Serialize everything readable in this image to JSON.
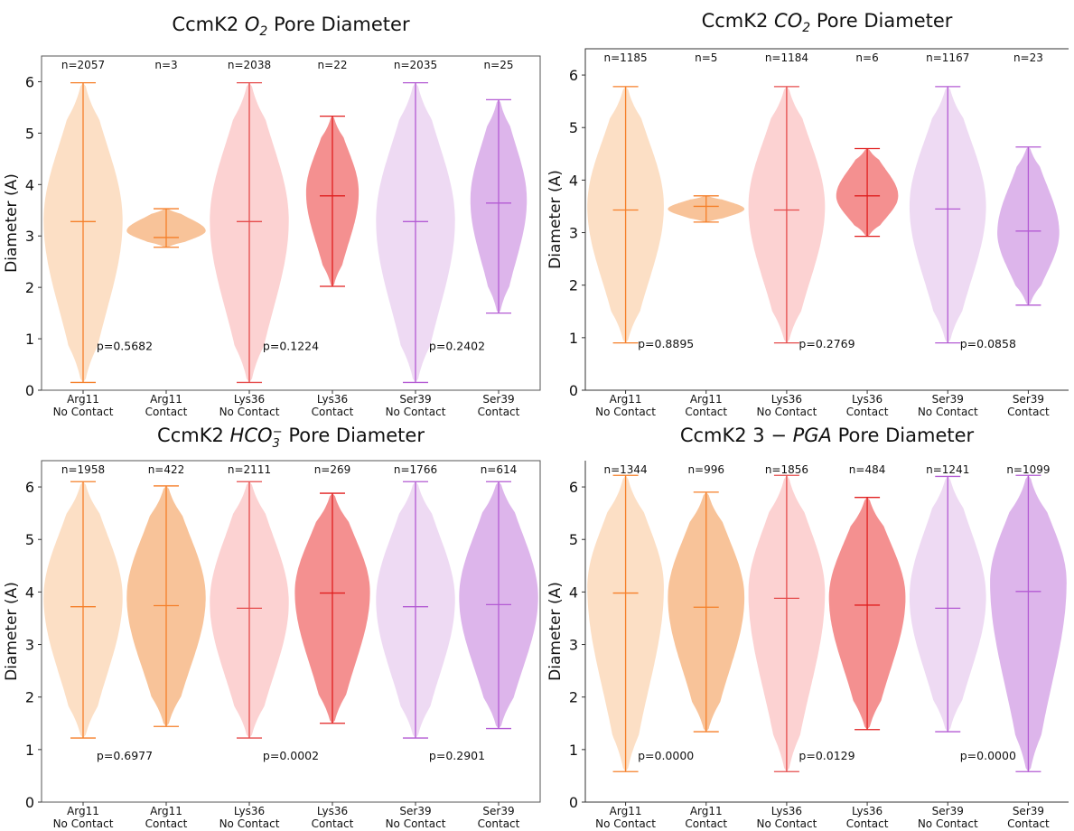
{
  "chart_data": [
    {
      "type": "violin",
      "title": "CcmK2 O₂ Pore Diameter",
      "ylabel": "Diameter (A)",
      "ylim": [
        0,
        6.5
      ],
      "yticks": [
        "0",
        "1",
        "2",
        "3",
        "4",
        "5",
        "6"
      ],
      "categories": [
        "Arg11 No Contact",
        "Arg11 Contact",
        "Lys36 No Contact",
        "Lys36 Contact",
        "Ser39 No Contact",
        "Ser39 Contact"
      ],
      "tick_lines": [
        [
          "Arg11",
          "No Contact"
        ],
        [
          "Arg11",
          "Contact"
        ],
        [
          "Lys36",
          "No Contact"
        ],
        [
          "Lys36",
          "Contact"
        ],
        [
          "Ser39",
          "No Contact"
        ],
        [
          "Ser39",
          "Contact"
        ]
      ],
      "colors": [
        "#fbd9bb",
        "#f7b887",
        "#fbcaca",
        "#f27c7c",
        "#ebd3f1",
        "#d7a8e8"
      ],
      "line_colors": [
        "#f57f29",
        "#f57f29",
        "#e54b4b",
        "#e01f1f",
        "#b35ad3",
        "#b35ad3"
      ],
      "counts": [
        "n=2057",
        "n=3",
        "n=2038",
        "n=22",
        "n=2035",
        "n=25"
      ],
      "min": [
        0.15,
        2.78,
        0.15,
        2.02,
        0.15,
        1.5
      ],
      "max": [
        5.98,
        3.53,
        5.98,
        5.33,
        5.98,
        5.65
      ],
      "median": [
        3.28,
        2.97,
        3.28,
        3.78,
        3.28,
        3.64
      ],
      "mode": [
        3.3,
        3.1,
        3.3,
        3.85,
        3.3,
        3.7
      ],
      "width": [
        0.42,
        0.42,
        0.42,
        0.28,
        0.42,
        0.3
      ],
      "pvalues": [
        "p=0.5682",
        "p=0.1224",
        "p=0.2402"
      ],
      "pvalue_y": 0.85
    },
    {
      "type": "violin",
      "title": "CcmK2 CO₂ Pore Diameter",
      "ylabel": "Diameter (A)",
      "ylim": [
        0,
        6.5
      ],
      "yticks": [
        "0",
        "1",
        "2",
        "3",
        "4",
        "5",
        "6"
      ],
      "categories": [
        "Arg11 No Contact",
        "Arg11 Contact",
        "Lys36 No Contact",
        "Lys36 Contact",
        "Ser39 No Contact",
        "Ser39 Contact"
      ],
      "tick_lines": [
        [
          "Arg11",
          "No Contact"
        ],
        [
          "Arg11",
          "Contact"
        ],
        [
          "Lys36",
          "No Contact"
        ],
        [
          "Lys36",
          "Contact"
        ],
        [
          "Ser39",
          "No Contact"
        ],
        [
          "Ser39",
          "Contact"
        ]
      ],
      "colors": [
        "#fbd9bb",
        "#f7b887",
        "#fbcaca",
        "#f27c7c",
        "#ebd3f1",
        "#d7a8e8"
      ],
      "line_colors": [
        "#f57f29",
        "#f57f29",
        "#e54b4b",
        "#e01f1f",
        "#b35ad3",
        "#b35ad3"
      ],
      "counts": [
        "n=1185",
        "n=5",
        "n=1184",
        "n=6",
        "n=1167",
        "n=23"
      ],
      "min": [
        0.9,
        3.2,
        0.9,
        2.93,
        0.9,
        1.62
      ],
      "max": [
        5.78,
        3.7,
        5.78,
        4.6,
        5.78,
        4.63
      ],
      "median": [
        3.43,
        3.5,
        3.43,
        3.7,
        3.45,
        3.03
      ],
      "mode": [
        3.5,
        3.45,
        3.5,
        3.7,
        3.5,
        3.0
      ],
      "width": [
        0.42,
        0.42,
        0.42,
        0.34,
        0.42,
        0.34
      ],
      "pvalues": [
        "p=0.8895",
        "p=0.2769",
        "p=0.0858"
      ],
      "pvalue_y": 0.88
    },
    {
      "type": "violin",
      "title": "CcmK2 HCO₃⁻ Pore Diameter",
      "ylabel": "Diameter (A)",
      "ylim": [
        0,
        6.5
      ],
      "yticks": [
        "0",
        "1",
        "2",
        "3",
        "4",
        "5",
        "6"
      ],
      "categories": [
        "Arg11 No Contact",
        "Arg11 Contact",
        "Lys36 No Contact",
        "Lys36 Contact",
        "Ser39 No Contact",
        "Ser39 Contact"
      ],
      "tick_lines": [
        [
          "Arg11",
          "No Contact"
        ],
        [
          "Arg11",
          "Contact"
        ],
        [
          "Lys36",
          "No Contact"
        ],
        [
          "Lys36",
          "Contact"
        ],
        [
          "Ser39",
          "No Contact"
        ],
        [
          "Ser39",
          "Contact"
        ]
      ],
      "colors": [
        "#fbd9bb",
        "#f7b887",
        "#fbcaca",
        "#f27c7c",
        "#ebd3f1",
        "#d7a8e8"
      ],
      "line_colors": [
        "#f57f29",
        "#f57f29",
        "#e54b4b",
        "#e01f1f",
        "#b35ad3",
        "#b35ad3"
      ],
      "counts": [
        "n=1958",
        "n=422",
        "n=2111",
        "n=269",
        "n=1766",
        "n=614"
      ],
      "min": [
        1.22,
        1.44,
        1.22,
        1.5,
        1.22,
        1.4
      ],
      "max": [
        6.1,
        6.02,
        6.1,
        5.88,
        6.1,
        6.1
      ],
      "median": [
        3.72,
        3.74,
        3.69,
        3.98,
        3.72,
        3.76
      ],
      "mode": [
        3.9,
        3.9,
        3.8,
        4.0,
        3.85,
        3.9
      ],
      "width": [
        0.42,
        0.42,
        0.42,
        0.4,
        0.42,
        0.42
      ],
      "pvalues": [
        "p=0.6977",
        "p=0.0002",
        "p=0.2901"
      ],
      "pvalue_y": 0.88
    },
    {
      "type": "violin",
      "title": "CcmK2 3 − PGA Pore Diameter",
      "ylabel": "Diameter (A)",
      "ylim": [
        0,
        6.5
      ],
      "yticks": [
        "0",
        "1",
        "2",
        "3",
        "4",
        "5",
        "6"
      ],
      "categories": [
        "Arg11 No Contact",
        "Arg11 Contact",
        "Lys36 No Contact",
        "Lys36 Contact",
        "Ser39 No Contact",
        "Ser39 Contact"
      ],
      "tick_lines": [
        [
          "Arg11",
          "No Contact"
        ],
        [
          "Arg11",
          "Contact"
        ],
        [
          "Lys36",
          "No Contact"
        ],
        [
          "Lys36",
          "Contact"
        ],
        [
          "Ser39",
          "No Contact"
        ],
        [
          "Ser39",
          "Contact"
        ]
      ],
      "colors": [
        "#fbd9bb",
        "#f7b887",
        "#fbcaca",
        "#f27c7c",
        "#ebd3f1",
        "#d7a8e8"
      ],
      "line_colors": [
        "#f57f29",
        "#f57f29",
        "#e54b4b",
        "#e01f1f",
        "#b35ad3",
        "#b35ad3"
      ],
      "counts": [
        "n=1344",
        "n=996",
        "n=1856",
        "n=484",
        "n=1241",
        "n=1099"
      ],
      "min": [
        0.58,
        1.34,
        0.58,
        1.38,
        1.34,
        0.58
      ],
      "max": [
        6.22,
        5.9,
        6.22,
        5.8,
        6.2,
        6.22
      ],
      "median": [
        3.98,
        3.71,
        3.88,
        3.75,
        3.69,
        4.01
      ],
      "mode": [
        4.1,
        3.9,
        4.0,
        3.9,
        3.9,
        4.2
      ],
      "width": [
        0.42,
        0.42,
        0.42,
        0.42,
        0.42,
        0.42
      ],
      "pvalues": [
        "p=0.0000",
        "p=0.0129",
        "p=0.0000"
      ],
      "pvalue_y": 0.88
    }
  ]
}
